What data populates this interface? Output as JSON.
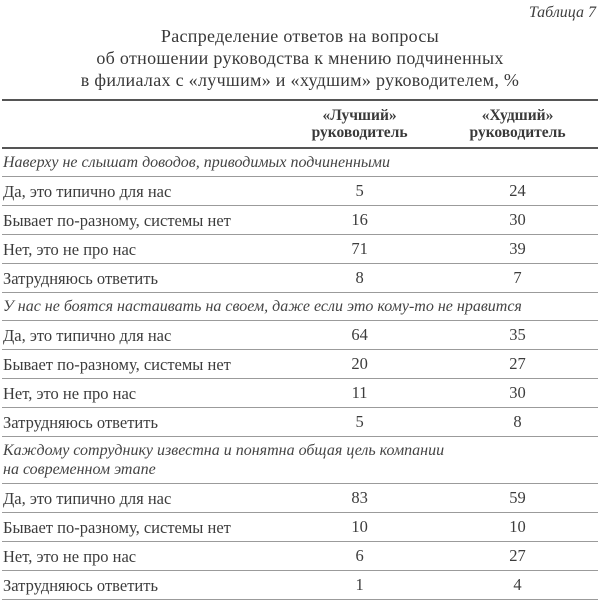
{
  "caption": "Таблица 7",
  "title_lines": [
    "Распределение ответов на вопросы",
    "об отношении руководства к мнению подчиненных",
    "в филиалах с «лучшим» и «худшим» руководителем, %"
  ],
  "columns": {
    "best": "«Лучший» руководитель",
    "worst": "«Худший» руководитель"
  },
  "sections": [
    {
      "question_lines": [
        "Наверху не слышат доводов, приводимых подчиненными"
      ],
      "rows": [
        {
          "label": "Да, это типично для нас",
          "best": "5",
          "worst": "24"
        },
        {
          "label": "Бывает по-разному, системы нет",
          "best": "16",
          "worst": "30"
        },
        {
          "label": "Нет, это не про нас",
          "best": "71",
          "worst": "39"
        },
        {
          "label": "Затрудняюсь ответить",
          "best": "8",
          "worst": "7"
        }
      ]
    },
    {
      "question_lines": [
        "У нас не боятся настаивать на своем, даже если это кому-то не нравится"
      ],
      "rows": [
        {
          "label": "Да, это типично для нас",
          "best": "64",
          "worst": "35"
        },
        {
          "label": "Бывает по-разному, системы нет",
          "best": "20",
          "worst": "27"
        },
        {
          "label": "Нет, это не про нас",
          "best": "11",
          "worst": "30"
        },
        {
          "label": "Затрудняюсь ответить",
          "best": "5",
          "worst": "8"
        }
      ]
    },
    {
      "question_lines": [
        "Каждому сотруднику известна и понятна общая цель компании",
        "на современном этапе"
      ],
      "rows": [
        {
          "label": "Да, это типично для нас",
          "best": "83",
          "worst": "59"
        },
        {
          "label": "Бывает по-разному, системы нет",
          "best": "10",
          "worst": "10"
        },
        {
          "label": "Нет, это не про нас",
          "best": "6",
          "worst": "27"
        },
        {
          "label": "Затрудняюсь ответить",
          "best": "1",
          "worst": "4"
        }
      ]
    }
  ],
  "colors": {
    "text": "#3c3c3c",
    "heavy_rule": "#555555",
    "thin_rule": "#9b9b9b",
    "background": "#ffffff"
  }
}
